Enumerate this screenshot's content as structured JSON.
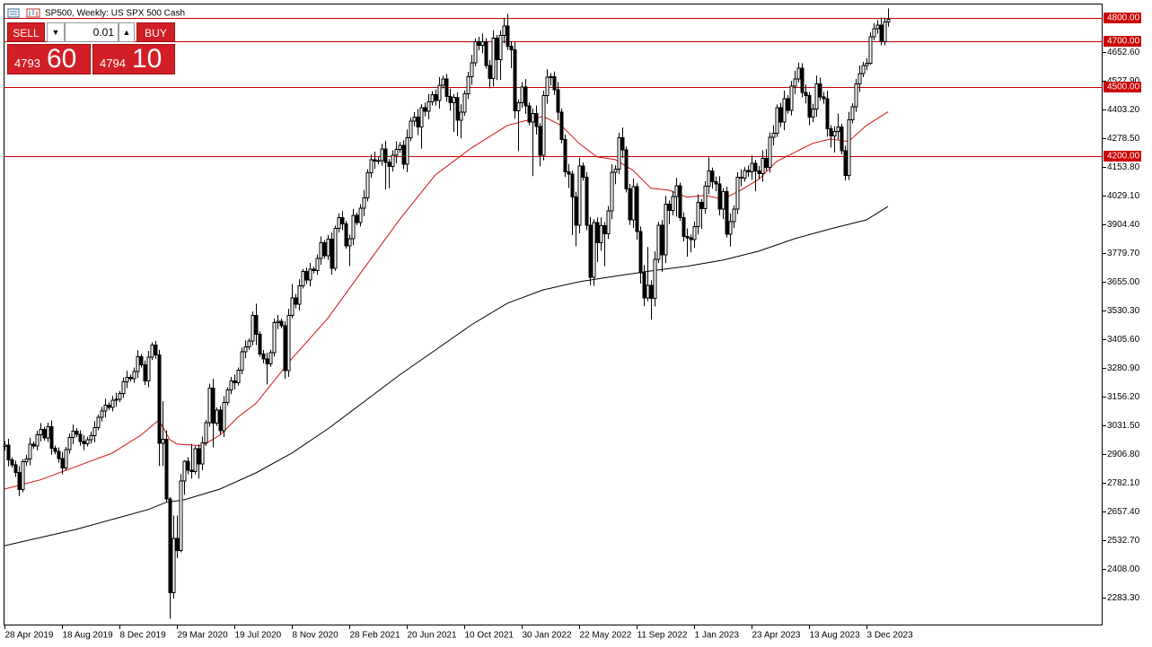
{
  "title": "SP500, Weekly:  US SPX 500 Cash",
  "trade_panel": {
    "sell": "SELL",
    "buy": "BUY",
    "lot": "0.01",
    "bid_main": "4793",
    "bid_big": "60",
    "ask_main": "4794",
    "ask_big": "10"
  },
  "chart_data": {
    "type": "candlestick",
    "up_color": "#ffffff",
    "down_color": "#000000",
    "edge_color": "#000000",
    "xlim": [
      -0.25,
      305.75
    ],
    "xticks": [
      {
        "value": 0,
        "label": "28 Apr 2019"
      },
      {
        "value": 16,
        "label": "18 Aug 2019"
      },
      {
        "value": 32,
        "label": "8 Dec 2019"
      },
      {
        "value": 48,
        "label": "29 Mar 2020"
      },
      {
        "value": 64,
        "label": "19 Jul 2020"
      },
      {
        "value": 80,
        "label": "8 Nov 2020"
      },
      {
        "value": 96,
        "label": "28 Feb 2021"
      },
      {
        "value": 112,
        "label": "20 Jun 2021"
      },
      {
        "value": 128,
        "label": "10 Oct 2021"
      },
      {
        "value": 144,
        "label": "30 Jan 2022"
      },
      {
        "value": 160,
        "label": "22 May 2022"
      },
      {
        "value": 176,
        "label": "11 Sep 2022"
      },
      {
        "value": 192,
        "label": "1 Jan 2023"
      },
      {
        "value": 208,
        "label": "23 Apr 2023"
      },
      {
        "value": 224,
        "label": "13 Aug 2023"
      },
      {
        "value": 240,
        "label": "3 Dec 2023"
      }
    ],
    "ylim": [
      2162.5,
      4863
    ],
    "yticks": [
      {
        "value": 4652.6,
        "label": "4652.60"
      },
      {
        "value": 4527.9,
        "label": "4527.90"
      },
      {
        "value": 4403.2,
        "label": "4403.20"
      },
      {
        "value": 4278.5,
        "label": "4278.50"
      },
      {
        "value": 4153.8,
        "label": "4153.80"
      },
      {
        "value": 4029.1,
        "label": "4029.10"
      },
      {
        "value": 3904.4,
        "label": "3904.40"
      },
      {
        "value": 3779.7,
        "label": "3779.70"
      },
      {
        "value": 3655,
        "label": "3655.00"
      },
      {
        "value": 3530.3,
        "label": "3530.30"
      },
      {
        "value": 3405.6,
        "label": "3405.60"
      },
      {
        "value": 3280.9,
        "label": "3280.90"
      },
      {
        "value": 3156.2,
        "label": "3156.20"
      },
      {
        "value": 3031.5,
        "label": "3031.50"
      },
      {
        "value": 2906.8,
        "label": "2906.80"
      },
      {
        "value": 2782.1,
        "label": "2782.10"
      },
      {
        "value": 2657.4,
        "label": "2657.40"
      },
      {
        "value": 2532.7,
        "label": "2532.70"
      },
      {
        "value": 2408,
        "label": "2408.00"
      },
      {
        "value": 2283.3,
        "label": "2283.30"
      }
    ],
    "levels": [
      {
        "value": 4800,
        "label": "4800.00"
      },
      {
        "value": 4700,
        "label": "4700.00"
      },
      {
        "value": 4500,
        "label": "4500.00"
      },
      {
        "value": 4200,
        "label": "4200.00"
      }
    ],
    "level_color": "#cc0000",
    "candles": {
      "open": [
        2940,
        2945,
        2881,
        2860,
        2826,
        2752,
        2873,
        2886,
        2950,
        2941,
        2990,
        3013,
        2977,
        3025,
        2932,
        2918,
        2888,
        2847,
        2926,
        2978,
        3007,
        2992,
        2961,
        2952,
        2970,
        2986,
        3022,
        3066,
        3093,
        3120,
        3110,
        3141,
        3145,
        3169,
        3221,
        3240,
        3234,
        3265,
        3330,
        3295,
        3225,
        3327,
        3380,
        3338,
        2954,
        2972,
        2711,
        2305,
        2541,
        2488,
        2790,
        2875,
        2837,
        2831,
        2930,
        2864,
        2955,
        3044,
        3194,
        3041,
        3098,
        3009,
        3130,
        3185,
        3224,
        3216,
        3271,
        3351,
        3372,
        3397,
        3508,
        3427,
        3341,
        3319,
        3298,
        3348,
        3477,
        3483,
        3465,
        3270,
        3509,
        3585,
        3558,
        3638,
        3699,
        3663,
        3709,
        3703,
        3756,
        3824,
        3768,
        3841,
        3714,
        3887,
        3934,
        3907,
        3811,
        3842,
        3943,
        3913,
        3974,
        4019,
        4129,
        4185,
        4180,
        4181,
        4232,
        4173,
        4156,
        4204,
        4230,
        4247,
        4166,
        4281,
        4352,
        4370,
        4327,
        4411,
        4395,
        4436,
        4468,
        4442,
        4509,
        4535,
        4459,
        4433,
        4455,
        4357,
        4391,
        4471,
        4545,
        4605,
        4697,
        4682,
        4698,
        4595,
        4538,
        4712,
        4620,
        4725,
        4766,
        4677,
        4662,
        4398,
        4432,
        4500,
        4419,
        4349,
        4385,
        4329,
        4204,
        4463,
        4543,
        4546,
        4488,
        4392,
        4272,
        4132,
        4123,
        4024,
        3901,
        4158,
        4109,
        3901,
        3675,
        3912,
        3825,
        3899,
        3863,
        3962,
        4130,
        4145,
        4280,
        4228,
        4058,
        3924,
        4068,
        3873,
        3693,
        3585,
        3640,
        3583,
        3752,
        3901,
        3771,
        3993,
        3965,
        4026,
        4071,
        3934,
        3852,
        3845,
        3839,
        3895,
        3999,
        3972,
        4070,
        4136,
        4090,
        4079,
        3970,
        4046,
        3862,
        3917,
        3971,
        4109,
        4105,
        4138,
        4133,
        4169,
        4136,
        4124,
        4191,
        4151,
        4282,
        4299,
        4410,
        4348,
        4450,
        4399,
        4505,
        4536,
        4582,
        4478,
        4464,
        4370,
        4406,
        4515,
        4457,
        4450,
        4320,
        4288,
        4308,
        4327,
        4224,
        4117,
        4358,
        4415,
        4514,
        4559,
        4595,
        4604,
        4719,
        4754,
        4770,
        4697,
        4784
      ],
      "high": [
        2963,
        2973,
        2893,
        2878,
        2854,
        2885,
        2904,
        2978,
        2962,
        3008,
        3041,
        3025,
        3043,
        3053,
        2944,
        2936,
        2916,
        2938,
        2996,
        3035,
        3019,
        3010,
        2989,
        2982,
        3004,
        3050,
        3078,
        3111,
        3148,
        3132,
        3159,
        3173,
        3181,
        3239,
        3268,
        3252,
        3283,
        3358,
        3342,
        3313,
        3355,
        3392,
        3398,
        3360,
        3136,
        3010,
        2720,
        2640,
        2640,
        2820,
        2880,
        2893,
        2950,
        2942,
        2948,
        2983,
        3056,
        3212,
        3233,
        3110,
        3116,
        3158,
        3197,
        3242,
        3252,
        3283,
        3369,
        3400,
        3409,
        3526,
        3560,
        3439,
        3359,
        3347,
        3360,
        3495,
        3511,
        3495,
        3483,
        3537,
        3645,
        3603,
        3666,
        3711,
        3717,
        3737,
        3721,
        3774,
        3852,
        3836,
        3859,
        3869,
        3899,
        3952,
        3962,
        3919,
        3860,
        3971,
        3955,
        3992,
        4054,
        4144,
        4207,
        4220,
        4196,
        4254,
        4267,
        4188,
        4226,
        4265,
        4262,
        4269,
        4316,
        4367,
        4392,
        4405,
        4426,
        4433,
        4471,
        4483,
        4490,
        4544,
        4550,
        4557,
        4494,
        4470,
        4477,
        4426,
        4486,
        4567,
        4640,
        4712,
        4719,
        4733,
        4713,
        4617,
        4747,
        4727,
        4747,
        4801,
        4818,
        4699,
        4697,
        4447,
        4522,
        4535,
        4434,
        4407,
        4420,
        4344,
        4485,
        4578,
        4561,
        4568,
        4523,
        4407,
        4294,
        4167,
        4138,
        4046,
        4193,
        4173,
        4131,
        3936,
        3927,
        3934,
        3934,
        3914,
        3984,
        4165,
        4160,
        4302,
        4325,
        4243,
        4080,
        4103,
        4083,
        3895,
        3728,
        3806,
        3662,
        3787,
        3916,
        3923,
        4028,
        4008,
        4048,
        4106,
        4086,
        3956,
        3887,
        3860,
        3917,
        4034,
        4014,
        4092,
        4195,
        4151,
        4112,
        4114,
        4061,
        4068,
        3952,
        3986,
        4131,
        4144,
        4153,
        4160,
        4204,
        4184,
        4158,
        4226,
        4231,
        4304,
        4334,
        4425,
        4432,
        4485,
        4465,
        4527,
        4571,
        4607,
        4604,
        4513,
        4479,
        4428,
        4550,
        4541,
        4479,
        4485,
        4335,
        4330,
        4385,
        4342,
        4246,
        4393,
        4430,
        4536,
        4594,
        4610,
        4626,
        4738,
        4778,
        4793,
        4802,
        4802,
        4842
      ],
      "low": [
        2922,
        2853,
        2848,
        2808,
        2724,
        2740,
        2855,
        2858,
        2929,
        2923,
        2962,
        2965,
        2959,
        2904,
        2906,
        2870,
        2819,
        2835,
        2908,
        2950,
        2980,
        2943,
        2924,
        2940,
        2952,
        2958,
        3010,
        3048,
        3065,
        3098,
        3092,
        3113,
        3133,
        3151,
        3193,
        3222,
        3216,
        3237,
        3283,
        3207,
        3197,
        3315,
        3320,
        2855,
        2855,
        2700,
        2192,
        2280,
        2455,
        2480,
        2730,
        2819,
        2800,
        2819,
        2800,
        2836,
        2943,
        3026,
        2936,
        3029,
        2991,
        2981,
        3118,
        3167,
        3188,
        3204,
        3253,
        3323,
        3360,
        3379,
        3380,
        3329,
        3301,
        3210,
        3286,
        3330,
        3449,
        3453,
        3233,
        3242,
        3497,
        3540,
        3530,
        3626,
        3645,
        3635,
        3691,
        3685,
        3728,
        3756,
        3750,
        3686,
        3702,
        3869,
        3879,
        3799,
        3723,
        3814,
        3901,
        3895,
        3939,
        4004,
        4107,
        4145,
        4165,
        4159,
        4056,
        4061,
        4134,
        4169,
        4215,
        4144,
        4131,
        4266,
        4330,
        4292,
        4233,
        4373,
        4360,
        4421,
        4420,
        4407,
        4494,
        4437,
        4398,
        4305,
        4288,
        4278,
        4376,
        4449,
        4510,
        4590,
        4660,
        4647,
        4580,
        4495,
        4503,
        4531,
        4532,
        4690,
        4662,
        4582,
        4363,
        4222,
        4410,
        4384,
        4334,
        4114,
        4294,
        4157,
        4182,
        4428,
        4507,
        4466,
        4357,
        4257,
        4110,
        4062,
        3858,
        3810,
        3866,
        4094,
        3879,
        3640,
        3637,
        3741,
        3790,
        3722,
        3841,
        3927,
        4079,
        4123,
        4193,
        4043,
        3902,
        3889,
        3838,
        3647,
        3550,
        3570,
        3491,
        3548,
        3737,
        3698,
        3736,
        3906,
        3943,
        3938,
        3919,
        3830,
        3764,
        3783,
        3802,
        3860,
        3885,
        3950,
        4035,
        4060,
        4048,
        3943,
        3928,
        3847,
        3808,
        3888,
        3949,
        4070,
        4090,
        4111,
        4098,
        4048,
        4102,
        4089,
        4136,
        4129,
        4247,
        4284,
        4326,
        4313,
        4385,
        4377,
        4470,
        4521,
        4456,
        4429,
        4335,
        4348,
        4371,
        4442,
        4428,
        4285,
        4238,
        4216,
        4273,
        4209,
        4095,
        4097,
        4343,
        4393,
        4479,
        4544,
        4573,
        4597,
        4704,
        4732,
        4682,
        4682,
        4762
      ],
      "close": [
        2945,
        2881,
        2860,
        2826,
        2752,
        2873,
        2886,
        2950,
        2941,
        2990,
        3013,
        2977,
        3025,
        2932,
        2918,
        2888,
        2847,
        2926,
        2978,
        3007,
        2992,
        2961,
        2952,
        2970,
        2986,
        3022,
        3066,
        3093,
        3120,
        3110,
        3141,
        3145,
        3169,
        3221,
        3240,
        3234,
        3265,
        3330,
        3295,
        3225,
        3327,
        3380,
        3338,
        2954,
        2972,
        2711,
        2305,
        2541,
        2488,
        2790,
        2875,
        2837,
        2831,
        2930,
        2864,
        2955,
        3044,
        3194,
        3041,
        3098,
        3009,
        3130,
        3185,
        3224,
        3216,
        3271,
        3351,
        3372,
        3397,
        3508,
        3427,
        3341,
        3319,
        3298,
        3348,
        3477,
        3483,
        3465,
        3270,
        3509,
        3585,
        3558,
        3638,
        3699,
        3663,
        3709,
        3703,
        3756,
        3824,
        3768,
        3841,
        3714,
        3887,
        3934,
        3907,
        3811,
        3842,
        3943,
        3913,
        3974,
        4019,
        4129,
        4185,
        4180,
        4181,
        4232,
        4173,
        4156,
        4204,
        4230,
        4247,
        4166,
        4281,
        4352,
        4370,
        4327,
        4411,
        4395,
        4436,
        4468,
        4442,
        4509,
        4535,
        4459,
        4433,
        4455,
        4357,
        4391,
        4471,
        4545,
        4605,
        4697,
        4682,
        4698,
        4595,
        4538,
        4712,
        4620,
        4725,
        4766,
        4677,
        4662,
        4398,
        4432,
        4500,
        4419,
        4349,
        4385,
        4329,
        4204,
        4463,
        4543,
        4546,
        4488,
        4392,
        4272,
        4132,
        4123,
        4024,
        3901,
        4158,
        4109,
        3901,
        3675,
        3912,
        3825,
        3899,
        3863,
        3962,
        4130,
        4145,
        4280,
        4228,
        4058,
        3924,
        4068,
        3873,
        3693,
        3585,
        3640,
        3583,
        3752,
        3901,
        3771,
        3993,
        3965,
        4026,
        4071,
        3934,
        3852,
        3845,
        3839,
        3895,
        3999,
        3972,
        4070,
        4136,
        4090,
        4079,
        3970,
        4046,
        3862,
        3917,
        3971,
        4109,
        4105,
        4138,
        4133,
        4169,
        4136,
        4124,
        4191,
        4151,
        4282,
        4299,
        4410,
        4348,
        4450,
        4399,
        4505,
        4536,
        4582,
        4478,
        4464,
        4370,
        4406,
        4515,
        4457,
        4450,
        4320,
        4288,
        4308,
        4327,
        4224,
        4117,
        4358,
        4415,
        4514,
        4559,
        4595,
        4604,
        4719,
        4754,
        4770,
        4697,
        4784,
        4794
      ]
    },
    "overlays": [
      {
        "color": "#d01010",
        "x": [
          0,
          10,
          20,
          30,
          38,
          43,
          46,
          48,
          55,
          60,
          65,
          70,
          80,
          90,
          100,
          110,
          120,
          130,
          140,
          145,
          150,
          155,
          160,
          165,
          170,
          175,
          180,
          185,
          190,
          195,
          200,
          205,
          210,
          215,
          220,
          225,
          230,
          235,
          240,
          246
        ],
        "values": [
          2755,
          2795,
          2853,
          2911,
          2989,
          3055,
          2970,
          2950,
          2943,
          2989,
          3067,
          3126,
          3321,
          3496,
          3711,
          3925,
          4120,
          4236,
          4334,
          4354,
          4373,
          4334,
          4256,
          4197,
          4186,
          4139,
          4061,
          4053,
          4022,
          4030,
          4014,
          4053,
          4100,
          4178,
          4217,
          4256,
          4275,
          4264,
          4334,
          4393
        ]
      },
      {
        "color": "#000000",
        "x": [
          0,
          20,
          40,
          45,
          50,
          60,
          70,
          80,
          90,
          100,
          110,
          120,
          130,
          140,
          150,
          160,
          170,
          180,
          190,
          200,
          210,
          220,
          230,
          240,
          246
        ],
        "values": [
          2509,
          2580,
          2666,
          2697,
          2708,
          2755,
          2825,
          2911,
          3016,
          3133,
          3250,
          3359,
          3468,
          3562,
          3620,
          3655,
          3679,
          3702,
          3722,
          3749,
          3788,
          3842,
          3885,
          3924,
          3982
        ]
      }
    ]
  }
}
